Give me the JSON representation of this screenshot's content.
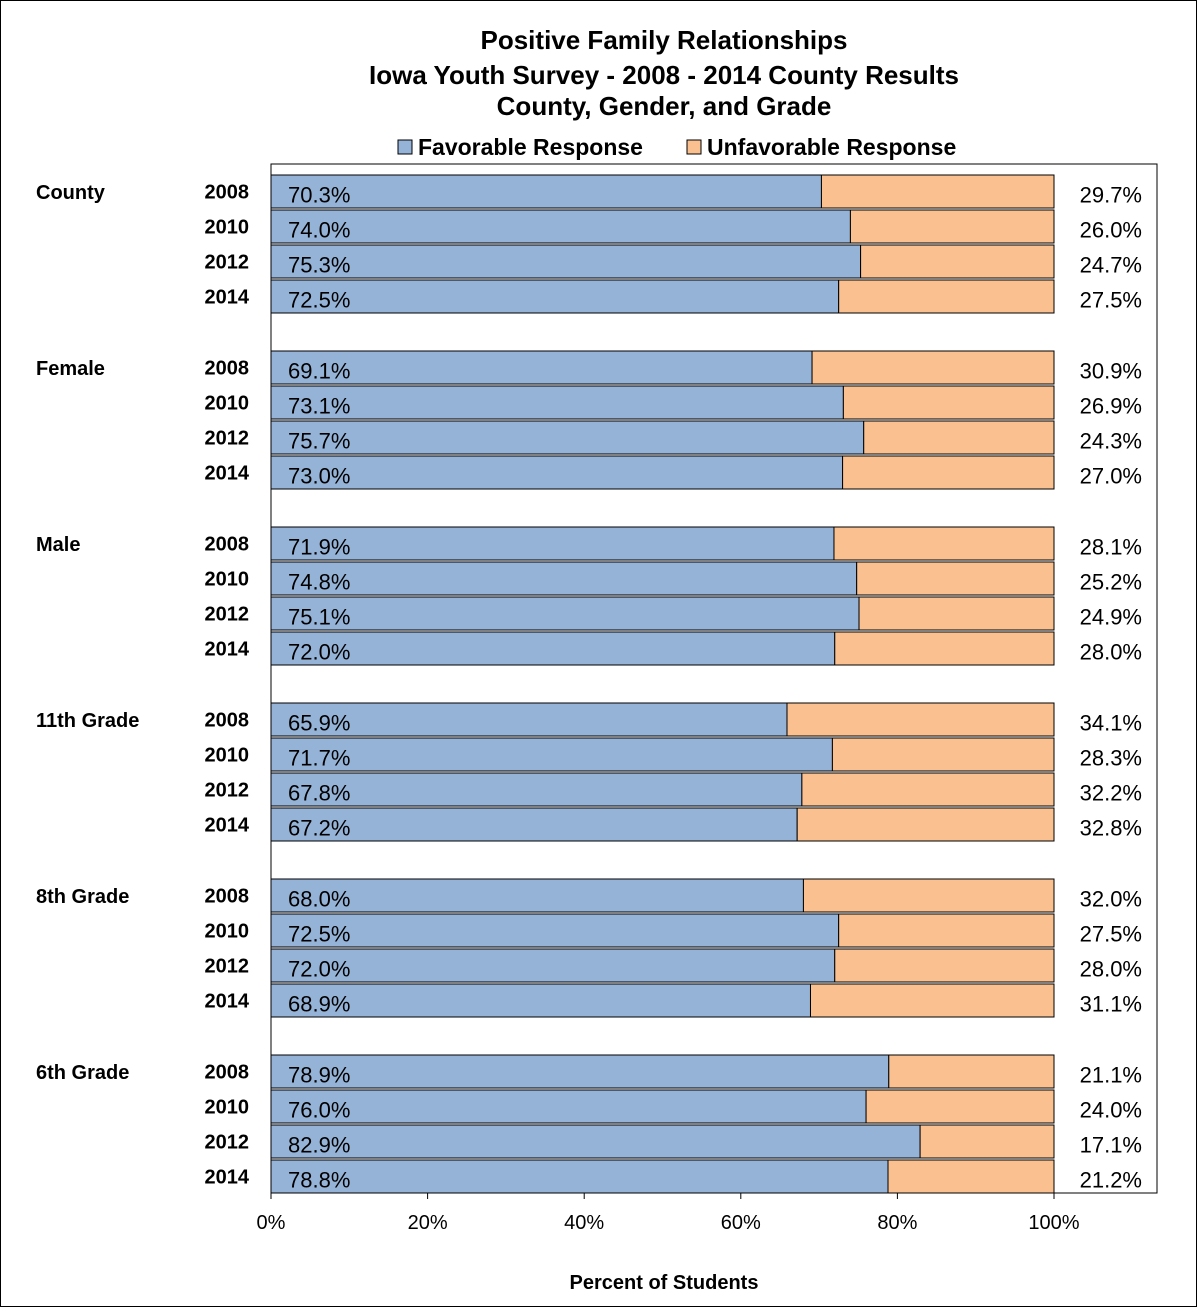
{
  "chart_data": {
    "type": "bar",
    "orientation": "horizontal",
    "stacked": true,
    "title": [
      "Positive Family Relationships",
      "Iowa Youth Survey - 2008 - 2014 County Results",
      "County, Gender, and Grade"
    ],
    "legend": {
      "placement": "top",
      "entries": [
        {
          "name": "Favorable Response",
          "color": "#95b3d7"
        },
        {
          "name": "Unfavorable Response",
          "color": "#fac090"
        }
      ]
    },
    "xlabel": "Percent of Students",
    "xlim": [
      0,
      100
    ],
    "xticks": [
      "0%",
      "20%",
      "40%",
      "60%",
      "80%",
      "100%"
    ],
    "grid": false,
    "groups": [
      {
        "name": "County",
        "rows": [
          {
            "year": "2008",
            "favorable": 70.3,
            "unfavorable": 29.7,
            "favorable_label": "70.3%",
            "unfavorable_label": "29.7%"
          },
          {
            "year": "2010",
            "favorable": 74.0,
            "unfavorable": 26.0,
            "favorable_label": "74.0%",
            "unfavorable_label": "26.0%"
          },
          {
            "year": "2012",
            "favorable": 75.3,
            "unfavorable": 24.7,
            "favorable_label": "75.3%",
            "unfavorable_label": "24.7%"
          },
          {
            "year": "2014",
            "favorable": 72.5,
            "unfavorable": 27.5,
            "favorable_label": "72.5%",
            "unfavorable_label": "27.5%"
          }
        ]
      },
      {
        "name": "Female",
        "rows": [
          {
            "year": "2008",
            "favorable": 69.1,
            "unfavorable": 30.9,
            "favorable_label": "69.1%",
            "unfavorable_label": "30.9%"
          },
          {
            "year": "2010",
            "favorable": 73.1,
            "unfavorable": 26.9,
            "favorable_label": "73.1%",
            "unfavorable_label": "26.9%"
          },
          {
            "year": "2012",
            "favorable": 75.7,
            "unfavorable": 24.3,
            "favorable_label": "75.7%",
            "unfavorable_label": "24.3%"
          },
          {
            "year": "2014",
            "favorable": 73.0,
            "unfavorable": 27.0,
            "favorable_label": "73.0%",
            "unfavorable_label": "27.0%"
          }
        ]
      },
      {
        "name": "Male",
        "rows": [
          {
            "year": "2008",
            "favorable": 71.9,
            "unfavorable": 28.1,
            "favorable_label": "71.9%",
            "unfavorable_label": "28.1%"
          },
          {
            "year": "2010",
            "favorable": 74.8,
            "unfavorable": 25.2,
            "favorable_label": "74.8%",
            "unfavorable_label": "25.2%"
          },
          {
            "year": "2012",
            "favorable": 75.1,
            "unfavorable": 24.9,
            "favorable_label": "75.1%",
            "unfavorable_label": "24.9%"
          },
          {
            "year": "2014",
            "favorable": 72.0,
            "unfavorable": 28.0,
            "favorable_label": "72.0%",
            "unfavorable_label": "28.0%"
          }
        ]
      },
      {
        "name": "11th Grade",
        "rows": [
          {
            "year": "2008",
            "favorable": 65.9,
            "unfavorable": 34.1,
            "favorable_label": "65.9%",
            "unfavorable_label": "34.1%"
          },
          {
            "year": "2010",
            "favorable": 71.7,
            "unfavorable": 28.3,
            "favorable_label": "71.7%",
            "unfavorable_label": "28.3%"
          },
          {
            "year": "2012",
            "favorable": 67.8,
            "unfavorable": 32.2,
            "favorable_label": "67.8%",
            "unfavorable_label": "32.2%"
          },
          {
            "year": "2014",
            "favorable": 67.2,
            "unfavorable": 32.8,
            "favorable_label": "67.2%",
            "unfavorable_label": "32.8%"
          }
        ]
      },
      {
        "name": "8th Grade",
        "rows": [
          {
            "year": "2008",
            "favorable": 68.0,
            "unfavorable": 32.0,
            "favorable_label": "68.0%",
            "unfavorable_label": "32.0%"
          },
          {
            "year": "2010",
            "favorable": 72.5,
            "unfavorable": 27.5,
            "favorable_label": "72.5%",
            "unfavorable_label": "27.5%"
          },
          {
            "year": "2012",
            "favorable": 72.0,
            "unfavorable": 28.0,
            "favorable_label": "72.0%",
            "unfavorable_label": "28.0%"
          },
          {
            "year": "2014",
            "favorable": 68.9,
            "unfavorable": 31.1,
            "favorable_label": "68.9%",
            "unfavorable_label": "31.1%"
          }
        ]
      },
      {
        "name": "6th Grade",
        "rows": [
          {
            "year": "2008",
            "favorable": 78.9,
            "unfavorable": 21.1,
            "favorable_label": "78.9%",
            "unfavorable_label": "21.1%"
          },
          {
            "year": "2010",
            "favorable": 76.0,
            "unfavorable": 24.0,
            "favorable_label": "76.0%",
            "unfavorable_label": "24.0%"
          },
          {
            "year": "2012",
            "favorable": 82.9,
            "unfavorable": 17.1,
            "favorable_label": "82.9%",
            "unfavorable_label": "17.1%"
          },
          {
            "year": "2014",
            "favorable": 78.8,
            "unfavorable": 21.2,
            "favorable_label": "78.8%",
            "unfavorable_label": "21.2%"
          }
        ]
      }
    ]
  }
}
